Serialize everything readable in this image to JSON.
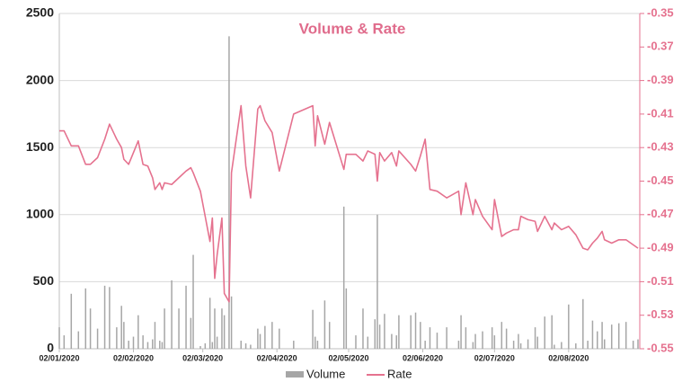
{
  "chart_data": {
    "type": "bar",
    "title": "Volume & Rate",
    "x": [
      "2020-01-02",
      "2020-01-04",
      "2020-01-07",
      "2020-01-10",
      "2020-01-13",
      "2020-01-15",
      "2020-01-18",
      "2020-01-21",
      "2020-01-23",
      "2020-01-26",
      "2020-01-28",
      "2020-01-29",
      "2020-01-31",
      "2020-02-02",
      "2020-02-04",
      "2020-02-06",
      "2020-02-08",
      "2020-02-10",
      "2020-02-11",
      "2020-02-13",
      "2020-02-14",
      "2020-02-15",
      "2020-02-18",
      "2020-02-21",
      "2020-02-24",
      "2020-02-26",
      "2020-02-27",
      "2020-03-01",
      "2020-03-03",
      "2020-03-05",
      "2020-03-06",
      "2020-03-07",
      "2020-03-08",
      "2020-03-10",
      "2020-03-11",
      "2020-03-13",
      "2020-03-14",
      "2020-03-18",
      "2020-03-20",
      "2020-03-22",
      "2020-03-25",
      "2020-03-26",
      "2020-03-28",
      "2020-03-31",
      "2020-04-03",
      "2020-04-09",
      "2020-04-17",
      "2020-04-18",
      "2020-04-19",
      "2020-04-22",
      "2020-04-24",
      "2020-04-30",
      "2020-05-01",
      "2020-05-05",
      "2020-05-08",
      "2020-05-10",
      "2020-05-13",
      "2020-05-14",
      "2020-05-15",
      "2020-05-17",
      "2020-05-20",
      "2020-05-22",
      "2020-05-23",
      "2020-05-28",
      "2020-05-30",
      "2020-06-01",
      "2020-06-03",
      "2020-06-05",
      "2020-06-08",
      "2020-06-12",
      "2020-06-17",
      "2020-06-18",
      "2020-06-20",
      "2020-06-23",
      "2020-06-24",
      "2020-06-27",
      "2020-07-01",
      "2020-07-02",
      "2020-07-05",
      "2020-07-07",
      "2020-07-10",
      "2020-07-12",
      "2020-07-13",
      "2020-07-16",
      "2020-07-19",
      "2020-07-20",
      "2020-07-23",
      "2020-07-26",
      "2020-07-27",
      "2020-07-30",
      "2020-08-02",
      "2020-08-05",
      "2020-08-08",
      "2020-08-10",
      "2020-08-12",
      "2020-08-14",
      "2020-08-16",
      "2020-08-17",
      "2020-08-20",
      "2020-08-23",
      "2020-08-26",
      "2020-08-29",
      "2020-08-31"
    ],
    "series": [
      {
        "name": "Volume",
        "type": "bar",
        "color": "#a6a6a6",
        "values": [
          160,
          100,
          410,
          130,
          450,
          300,
          150,
          470,
          460,
          160,
          320,
          200,
          60,
          90,
          250,
          100,
          50,
          70,
          200,
          60,
          50,
          300,
          510,
          300,
          470,
          230,
          700,
          20,
          40,
          380,
          50,
          300,
          90,
          300,
          250,
          2330,
          390,
          60,
          40,
          30,
          150,
          110,
          170,
          200,
          150,
          60,
          290,
          90,
          60,
          360,
          200,
          1060,
          450,
          100,
          300,
          90,
          220,
          1000,
          180,
          260,
          110,
          100,
          250,
          250,
          270,
          200,
          60,
          160,
          120,
          160,
          60,
          250,
          160,
          50,
          110,
          130,
          160,
          100,
          200,
          150,
          60,
          110,
          40,
          70,
          160,
          90,
          240,
          250,
          30,
          50,
          330,
          40,
          370,
          60,
          210,
          130,
          200,
          70,
          180,
          190,
          200,
          60,
          70
        ]
      },
      {
        "name": "Rate",
        "type": "line",
        "axis": "y2",
        "color": "#e5728f",
        "values": [
          -0.42,
          -0.42,
          -0.429,
          -0.429,
          -0.44,
          -0.44,
          -0.436,
          -0.425,
          -0.416,
          -0.425,
          -0.43,
          -0.437,
          -0.44,
          -0.433,
          -0.426,
          -0.44,
          -0.441,
          -0.448,
          -0.455,
          -0.451,
          -0.455,
          -0.451,
          -0.452,
          -0.448,
          -0.444,
          -0.442,
          -0.445,
          -0.456,
          -0.471,
          -0.486,
          -0.472,
          -0.508,
          -0.494,
          -0.472,
          -0.517,
          -0.522,
          -0.445,
          -0.405,
          -0.441,
          -0.46,
          -0.407,
          -0.405,
          -0.414,
          -0.421,
          -0.444,
          -0.41,
          -0.405,
          -0.429,
          -0.411,
          -0.428,
          -0.415,
          -0.443,
          -0.434,
          -0.434,
          -0.438,
          -0.432,
          -0.434,
          -0.45,
          -0.433,
          -0.438,
          -0.433,
          -0.441,
          -0.432,
          -0.44,
          -0.444,
          -0.435,
          -0.425,
          -0.455,
          -0.456,
          -0.46,
          -0.456,
          -0.47,
          -0.451,
          -0.47,
          -0.461,
          -0.471,
          -0.479,
          -0.461,
          -0.483,
          -0.481,
          -0.479,
          -0.479,
          -0.471,
          -0.473,
          -0.474,
          -0.48,
          -0.471,
          -0.479,
          -0.475,
          -0.479,
          -0.477,
          -0.482,
          -0.49,
          -0.491,
          -0.487,
          -0.484,
          -0.48,
          -0.485,
          -0.487,
          -0.485,
          -0.485,
          -0.488,
          -0.49
        ]
      }
    ],
    "xlim": [
      "2020-01-02",
      "2020-08-31"
    ],
    "xticks": [
      {
        "value": "2020-01-02",
        "label": "02/01/2020"
      },
      {
        "value": "2020-02-02",
        "label": "02/02/2020"
      },
      {
        "value": "2020-03-02",
        "label": "02/03/2020"
      },
      {
        "value": "2020-04-02",
        "label": "02/04/2020"
      },
      {
        "value": "2020-05-02",
        "label": "02/05/2020"
      },
      {
        "value": "2020-06-02",
        "label": "02/06/2020"
      },
      {
        "value": "2020-07-02",
        "label": "02/07/2020"
      },
      {
        "value": "2020-08-02",
        "label": "02/08/2020"
      }
    ],
    "ylim": [
      0,
      2500
    ],
    "yticks": [
      0,
      500,
      1000,
      1500,
      2000,
      2500
    ],
    "y2lim": [
      -0.55,
      -0.35
    ],
    "y2ticks": [
      -0.35,
      -0.37,
      -0.39,
      -0.41,
      -0.43,
      -0.45,
      -0.47,
      -0.49,
      -0.51,
      -0.53,
      -0.55
    ],
    "grid": true,
    "legend": "bottom"
  }
}
